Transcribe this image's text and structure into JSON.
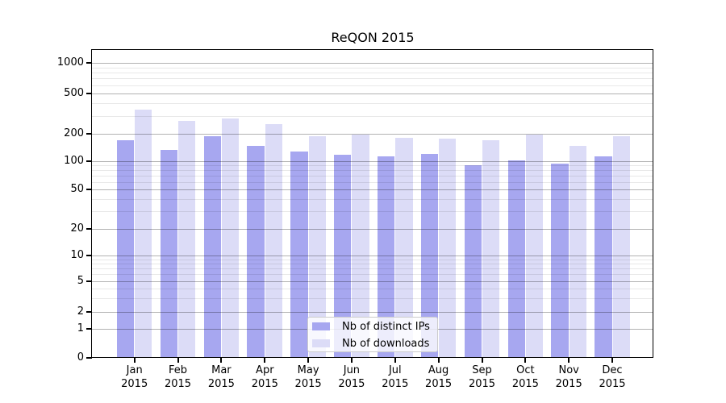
{
  "title": "ReQON 2015",
  "colors": {
    "distinct_ips": "#a7a7f0",
    "downloads": "#dcdcf7",
    "grid_major": "rgba(0,0,0,0.30)",
    "grid_minor": "rgba(0,0,0,0.09)",
    "spine": "#000000"
  },
  "legend": {
    "items": [
      {
        "label": "Nb of distinct IPs",
        "color_key": "distinct_ips"
      },
      {
        "label": "Nb of downloads",
        "color_key": "downloads"
      }
    ]
  },
  "x_axis": {
    "months": [
      "Jan",
      "Feb",
      "Mar",
      "Apr",
      "May",
      "Jun",
      "Jul",
      "Aug",
      "Sep",
      "Oct",
      "Nov",
      "Dec"
    ],
    "year": "2015"
  },
  "y_axis": {
    "tick_labels": [
      "0",
      "1",
      "2",
      "5",
      "10",
      "20",
      "50",
      "100",
      "200",
      "500",
      "1000"
    ],
    "tick_values": [
      0,
      1,
      2,
      5,
      10,
      20,
      50,
      100,
      200,
      500,
      1000
    ],
    "minor_gridline_values": [
      3,
      4,
      6,
      7,
      8,
      9,
      30,
      40,
      60,
      70,
      80,
      90,
      300,
      400,
      600,
      700,
      800,
      900
    ]
  },
  "chart_data": {
    "type": "bar",
    "title": "ReQON 2015",
    "categories": [
      "Jan 2015",
      "Feb 2015",
      "Mar 2015",
      "Apr 2015",
      "May 2015",
      "Jun 2015",
      "Jul 2015",
      "Aug 2015",
      "Sep 2015",
      "Oct 2015",
      "Nov 2015",
      "Dec 2015"
    ],
    "series": [
      {
        "name": "Nb of distinct IPs",
        "color_key": "distinct_ips",
        "values": [
          170,
          131,
          186,
          145,
          127,
          116,
          112,
          120,
          90,
          102,
          94,
          111
        ]
      },
      {
        "name": "Nb of downloads",
        "color_key": "downloads",
        "values": [
          345,
          266,
          278,
          248,
          188,
          196,
          180,
          174,
          168,
          196,
          147,
          188
        ]
      }
    ],
    "xlabel": "",
    "ylabel": "",
    "yscale": "symlog",
    "y_ticks": [
      0,
      1,
      2,
      5,
      10,
      20,
      50,
      100,
      200,
      500,
      1000
    ],
    "ylim": [
      0,
      1350
    ],
    "grid": "both-major-and-minor",
    "legend_position": "lower-center"
  }
}
